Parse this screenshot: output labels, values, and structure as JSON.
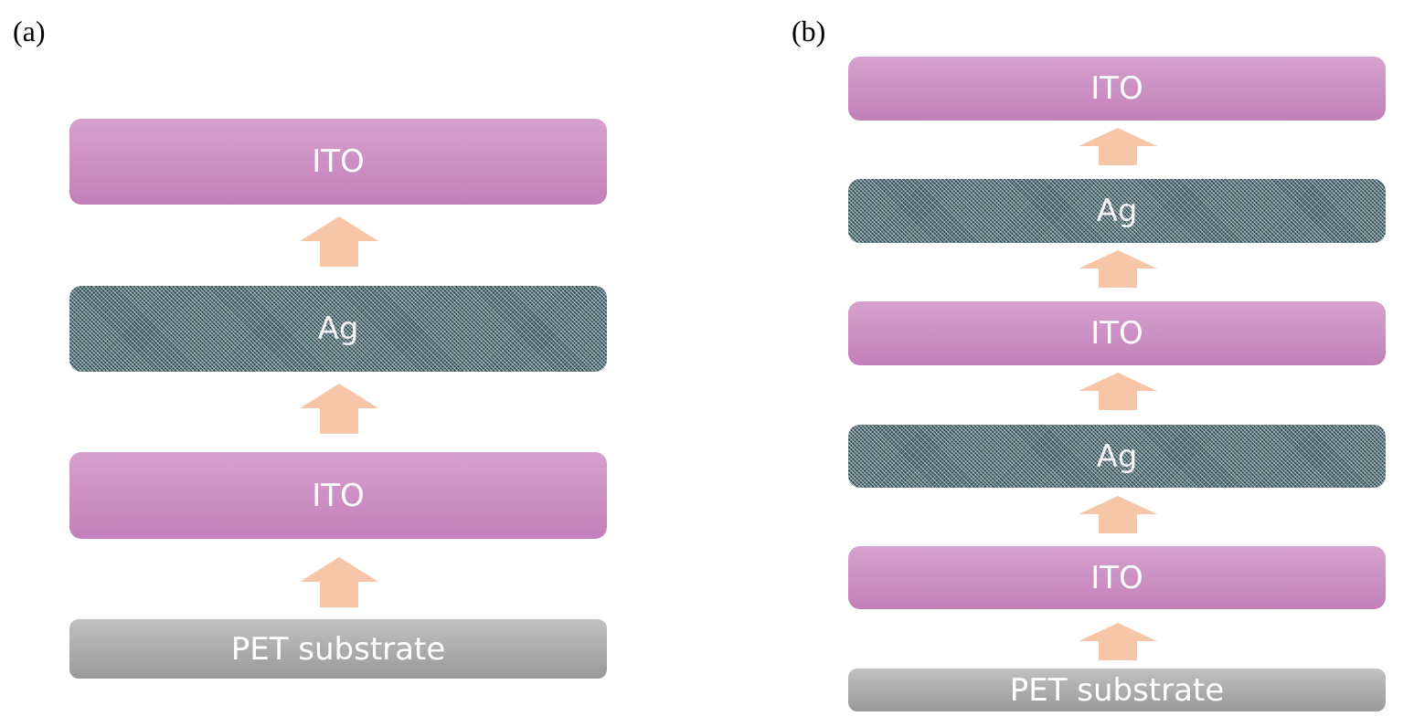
{
  "panels": [
    {
      "label": "(a)",
      "layers": [
        "ITO",
        "Ag",
        "ITO",
        "PET substrate"
      ]
    },
    {
      "label": "(b)",
      "layers": [
        "ITO",
        "Ag",
        "ITO",
        "Ag",
        "ITO",
        "PET substrate"
      ]
    }
  ],
  "colors": {
    "ito": "#c98ac0",
    "ag": "#2f4f58",
    "pet": "#aaaaaa",
    "arrow": "#f7c5a8"
  }
}
